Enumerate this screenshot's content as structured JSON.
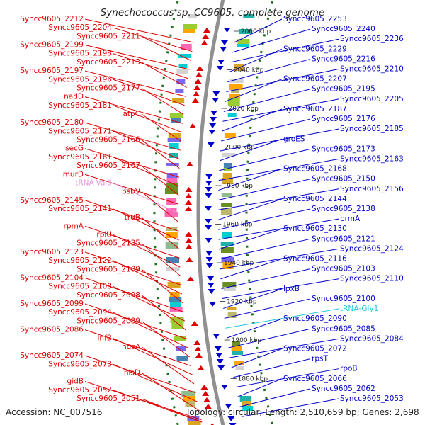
{
  "title": "Synechococcus sp. CC9605, complete genome",
  "footer": {
    "accession": "Accession: NC_007516",
    "summary": "Topology: circular; Length: 2,510,659 bp; Genes: 2,698"
  },
  "colors": {
    "forward": "#e00000",
    "reverse": "#0000cc",
    "trna": "#e890e0",
    "trna_rev": "#20c8e0",
    "backbone": "#909090",
    "tick": "#207020"
  },
  "ticks": [
    {
      "label": "2060 kbp",
      "kbp": 2060
    },
    {
      "label": "2040 kbp",
      "kbp": 2040
    },
    {
      "label": "2020 kbp",
      "kbp": 2020
    },
    {
      "label": "2000 kbp",
      "kbp": 2000
    },
    {
      "label": "1980 kbp",
      "kbp": 1980
    },
    {
      "label": "1960 kbp",
      "kbp": 1960
    },
    {
      "label": "1940 kbp",
      "kbp": 1940
    },
    {
      "label": "1920 kbp",
      "kbp": 1920
    },
    {
      "label": "1900 kbp",
      "kbp": 1900
    },
    {
      "label": "1880 kbp",
      "kbp": 1880
    }
  ],
  "left_labels": [
    {
      "text": "Syncc9605_2212",
      "type": "cds"
    },
    {
      "text": "Syncc9605_2204",
      "type": "cds"
    },
    {
      "text": "Syncc9605_2211",
      "type": "cds"
    },
    {
      "text": "Syncc9605_2199",
      "type": "cds"
    },
    {
      "text": "Syncc9605_2198",
      "type": "cds"
    },
    {
      "text": "Syncc9605_2213",
      "type": "cds"
    },
    {
      "text": "Syncc9605_2197",
      "type": "cds"
    },
    {
      "text": "Syncc9605_2196",
      "type": "cds"
    },
    {
      "text": "Syncc9605_2177",
      "type": "cds"
    },
    {
      "text": "nadD",
      "type": "cds"
    },
    {
      "text": "Syncc9605_2181",
      "type": "cds"
    },
    {
      "text": "atpC",
      "type": "cds"
    },
    {
      "text": "Syncc9605_2180",
      "type": "cds"
    },
    {
      "text": "Syncc9605_2171",
      "type": "cds"
    },
    {
      "text": "Syncc9605_2166",
      "type": "cds"
    },
    {
      "text": "secG",
      "type": "cds"
    },
    {
      "text": "Syncc9605_2161",
      "type": "cds"
    },
    {
      "text": "Syncc9605_2167",
      "type": "cds"
    },
    {
      "text": "murD",
      "type": "cds"
    },
    {
      "text": "tRNA-Val3",
      "type": "trna"
    },
    {
      "text": "psbV",
      "type": "cds"
    },
    {
      "text": "Syncc9605_2145",
      "type": "cds"
    },
    {
      "text": "Syncc9605_2141",
      "type": "cds"
    },
    {
      "text": "truB",
      "type": "cds"
    },
    {
      "text": "rpmA",
      "type": "cds"
    },
    {
      "text": "rplU",
      "type": "cds"
    },
    {
      "text": "Syncc9605_2135",
      "type": "cds"
    },
    {
      "text": "Syncc9605_2123",
      "type": "cds"
    },
    {
      "text": "Syncc9605_2122",
      "type": "cds"
    },
    {
      "text": "Syncc9605_2109",
      "type": "cds"
    },
    {
      "text": "Syncc9605_2104",
      "type": "cds"
    },
    {
      "text": "Syncc9605_2108",
      "type": "cds"
    },
    {
      "text": "Syncc9605_2098",
      "type": "cds"
    },
    {
      "text": "Syncc9605_2099",
      "type": "cds"
    },
    {
      "text": "Syncc9605_2094",
      "type": "cds"
    },
    {
      "text": "Syncc9605_2089",
      "type": "cds"
    },
    {
      "text": "Syncc9605_2086",
      "type": "cds"
    },
    {
      "text": "infB",
      "type": "cds"
    },
    {
      "text": "nusA",
      "type": "cds"
    },
    {
      "text": "Syncc9605_2074",
      "type": "cds"
    },
    {
      "text": "Syncc9605_2073",
      "type": "cds"
    },
    {
      "text": "hisD",
      "type": "cds"
    },
    {
      "text": "gidB",
      "type": "cds"
    },
    {
      "text": "Syncc9605_2052",
      "type": "cds"
    },
    {
      "text": "Syncc9605_2051",
      "type": "cds"
    }
  ],
  "right_labels": [
    {
      "text": "Syncc9605_2253",
      "type": "cds"
    },
    {
      "text": "Syncc9605_2240",
      "type": "cds"
    },
    {
      "text": "Syncc9605_2236",
      "type": "cds"
    },
    {
      "text": "Syncc9605_2229",
      "type": "cds"
    },
    {
      "text": "Syncc9605_2216",
      "type": "cds"
    },
    {
      "text": "Syncc9605_2210",
      "type": "cds"
    },
    {
      "text": "Syncc9605_2207",
      "type": "cds"
    },
    {
      "text": "Syncc9605_2195",
      "type": "cds"
    },
    {
      "text": "Syncc9605_2205",
      "type": "cds"
    },
    {
      "text": "Syncc9605_2187",
      "type": "cds"
    },
    {
      "text": "Syncc9605_2176",
      "type": "cds"
    },
    {
      "text": "Syncc9605_2185",
      "type": "cds"
    },
    {
      "text": "groES",
      "type": "cds"
    },
    {
      "text": "Syncc9605_2173",
      "type": "cds"
    },
    {
      "text": "Syncc9605_2163",
      "type": "cds"
    },
    {
      "text": "Syncc9605_2168",
      "type": "cds"
    },
    {
      "text": "Syncc9605_2150",
      "type": "cds"
    },
    {
      "text": "Syncc9605_2156",
      "type": "cds"
    },
    {
      "text": "Syncc9605_2144",
      "type": "cds"
    },
    {
      "text": "Syncc9605_2138",
      "type": "cds"
    },
    {
      "text": "prmA",
      "type": "cds"
    },
    {
      "text": "Syncc9605_2130",
      "type": "cds"
    },
    {
      "text": "Syncc9605_2121",
      "type": "cds"
    },
    {
      "text": "Syncc9605_2124",
      "type": "cds"
    },
    {
      "text": "Syncc9605_2116",
      "type": "cds"
    },
    {
      "text": "Syncc9605_2103",
      "type": "cds"
    },
    {
      "text": "Syncc9605_2110",
      "type": "cds"
    },
    {
      "text": "lpxB",
      "type": "cds"
    },
    {
      "text": "Syncc9605_2100",
      "type": "cds"
    },
    {
      "text": "tRNA-Gly1",
      "type": "trna"
    },
    {
      "text": "Syncc9605_2090",
      "type": "cds"
    },
    {
      "text": "Syncc9605_2085",
      "type": "cds"
    },
    {
      "text": "Syncc9605_2084",
      "type": "cds"
    },
    {
      "text": "Syncc9605_2072",
      "type": "cds"
    },
    {
      "text": "rpsT",
      "type": "cds"
    },
    {
      "text": "rpoB",
      "type": "cds"
    },
    {
      "text": "Syncc9605_2066",
      "type": "cds"
    },
    {
      "text": "Syncc9605_2062",
      "type": "cds"
    },
    {
      "text": "Syncc9605_2053",
      "type": "cds"
    }
  ]
}
